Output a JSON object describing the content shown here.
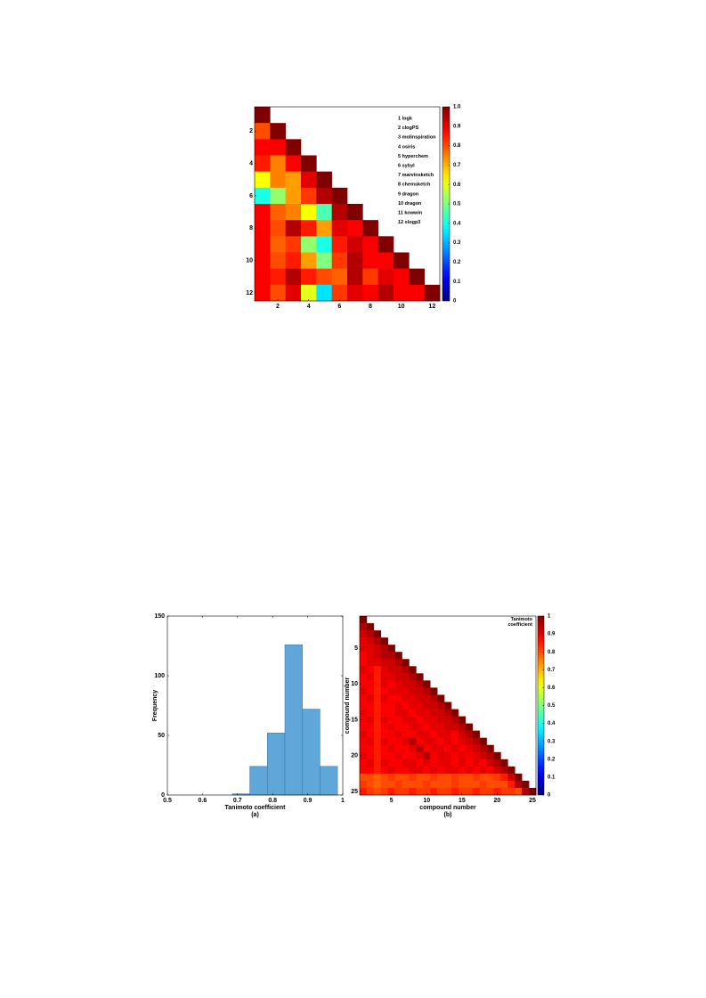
{
  "chart_data": [
    {
      "type": "heatmap",
      "legend_entries": [
        "1 logk",
        "2 clogPS",
        "3 molinspiration",
        "4 osiris",
        "5 hyperchem",
        "6 sybyl",
        "7 marvinsketch",
        "8 chemsketch",
        "9 dragon",
        "10 dragon",
        "11 kowwin",
        "12 slogp3"
      ],
      "xlim": [
        0.5,
        12.5
      ],
      "ylim": [
        0.5,
        12.5
      ],
      "xticks": [
        2,
        4,
        6,
        8,
        10,
        12
      ],
      "yticks": [
        2,
        4,
        6,
        8,
        10,
        12
      ],
      "clim": [
        0,
        1
      ],
      "cticks": [
        0,
        0.1,
        0.2,
        0.3,
        0.4,
        0.5,
        0.6,
        0.7,
        0.8,
        0.9,
        {
          "value": 1,
          "label": "1.0"
        }
      ],
      "colormap": "jet",
      "matrix": [
        [
          1.0
        ],
        [
          0.8,
          1.0
        ],
        [
          0.88,
          0.88,
          1.0
        ],
        [
          0.85,
          0.75,
          0.88,
          1.0
        ],
        [
          0.62,
          0.75,
          0.72,
          0.9,
          1.0
        ],
        [
          0.4,
          0.52,
          0.72,
          0.82,
          0.95,
          1.0
        ],
        [
          0.88,
          0.78,
          0.75,
          0.62,
          0.45,
          0.95,
          1.0
        ],
        [
          0.88,
          0.8,
          0.95,
          0.85,
          0.72,
          0.9,
          0.88,
          1.0
        ],
        [
          0.88,
          0.78,
          0.82,
          0.52,
          0.4,
          0.85,
          0.92,
          0.88,
          1.0
        ],
        [
          0.88,
          0.8,
          0.85,
          0.72,
          0.5,
          0.82,
          0.95,
          0.88,
          0.88,
          1.0
        ],
        [
          0.88,
          0.85,
          0.95,
          0.85,
          0.8,
          0.78,
          0.95,
          0.82,
          0.9,
          0.88,
          1.0
        ],
        [
          0.88,
          0.8,
          0.9,
          0.6,
          0.35,
          0.82,
          0.9,
          0.88,
          0.95,
          0.88,
          0.88,
          1.0
        ]
      ]
    },
    {
      "type": "histogram",
      "x_label": "Tanimoto coefficient",
      "y_label": "Frequency",
      "caption": "(a)",
      "bins": [
        0.685,
        0.735,
        0.785,
        0.835,
        0.885,
        0.935,
        0.985
      ],
      "values": [
        1,
        24,
        52,
        126,
        72,
        24
      ],
      "color": "#5ea7d8",
      "xlim": [
        0.5,
        1
      ],
      "ylim": [
        0,
        150
      ],
      "xticks": [
        0.5,
        0.6,
        0.7,
        0.8,
        0.9,
        1
      ],
      "yticks": [
        0,
        50,
        100,
        150
      ]
    },
    {
      "type": "heatmap",
      "x_label": "compound number",
      "y_label": "compound number",
      "caption": "(b)",
      "colorbar_label": "Tanimoto coefficient",
      "xlim": [
        0.5,
        25.5
      ],
      "ylim": [
        0.5,
        25.5
      ],
      "xticks": [
        5,
        10,
        15,
        20,
        25
      ],
      "yticks": [
        5,
        10,
        15,
        20,
        25
      ],
      "clim": [
        0,
        1
      ],
      "cticks": [
        0,
        0.1,
        0.2,
        0.3,
        0.4,
        0.5,
        0.6,
        0.7,
        0.8,
        0.9,
        1
      ],
      "colormap": "jet",
      "matrix": [
        [
          1
        ],
        [
          0.95,
          1
        ],
        [
          0.92,
          0.95,
          1
        ],
        [
          0.9,
          0.92,
          0.95,
          1
        ],
        [
          0.9,
          0.9,
          0.92,
          0.95,
          1
        ],
        [
          0.88,
          0.9,
          0.92,
          0.95,
          0.95,
          1
        ],
        [
          0.88,
          0.9,
          0.9,
          0.92,
          0.92,
          0.95,
          1
        ],
        [
          0.9,
          0.88,
          0.85,
          0.9,
          0.92,
          0.92,
          0.95,
          1
        ],
        [
          0.88,
          0.9,
          0.85,
          0.9,
          0.9,
          0.92,
          0.92,
          0.95,
          1
        ],
        [
          0.88,
          0.88,
          0.85,
          0.9,
          0.88,
          0.9,
          0.92,
          0.92,
          0.95,
          1
        ],
        [
          0.9,
          0.88,
          0.85,
          0.88,
          0.9,
          0.9,
          0.9,
          0.92,
          0.92,
          0.95,
          1
        ],
        [
          0.88,
          0.9,
          0.85,
          0.9,
          0.88,
          0.88,
          0.9,
          0.9,
          0.92,
          0.92,
          0.95,
          1
        ],
        [
          0.88,
          0.88,
          0.85,
          0.88,
          0.88,
          0.9,
          0.88,
          0.9,
          0.9,
          0.92,
          0.92,
          0.95,
          1
        ],
        [
          0.9,
          0.88,
          0.85,
          0.88,
          0.88,
          0.9,
          0.9,
          0.88,
          0.9,
          0.9,
          0.92,
          0.92,
          0.95,
          1
        ],
        [
          0.88,
          0.9,
          0.85,
          0.9,
          0.88,
          0.88,
          0.9,
          0.9,
          0.88,
          0.9,
          0.9,
          0.92,
          0.92,
          0.95,
          1
        ],
        [
          0.88,
          0.88,
          0.85,
          0.88,
          0.9,
          0.88,
          0.88,
          0.9,
          0.9,
          0.88,
          0.9,
          0.9,
          0.92,
          0.92,
          0.95,
          1
        ],
        [
          0.9,
          0.88,
          0.85,
          0.88,
          0.88,
          0.9,
          0.88,
          0.88,
          0.9,
          0.9,
          0.88,
          0.9,
          0.9,
          0.88,
          0.92,
          0.95,
          1
        ],
        [
          0.88,
          0.9,
          0.85,
          0.9,
          0.88,
          0.88,
          0.9,
          0.95,
          0.88,
          0.9,
          0.9,
          0.88,
          0.9,
          0.88,
          0.9,
          0.92,
          0.95,
          1
        ],
        [
          0.88,
          0.88,
          0.85,
          0.88,
          0.9,
          0.88,
          0.88,
          0.9,
          0.95,
          0.88,
          0.9,
          0.9,
          0.88,
          0.9,
          0.88,
          0.9,
          0.92,
          0.95,
          1
        ],
        [
          0.9,
          0.88,
          0.85,
          0.88,
          0.88,
          0.9,
          0.88,
          0.88,
          0.9,
          0.95,
          0.88,
          0.9,
          0.9,
          0.88,
          0.9,
          0.88,
          0.9,
          0.92,
          0.95,
          1
        ],
        [
          0.88,
          0.9,
          0.85,
          0.9,
          0.88,
          0.88,
          0.9,
          0.9,
          0.88,
          0.9,
          0.88,
          0.9,
          0.9,
          0.88,
          0.9,
          0.88,
          0.9,
          0.88,
          0.92,
          0.95,
          1
        ],
        [
          0.88,
          0.88,
          0.85,
          0.88,
          0.9,
          0.88,
          0.88,
          0.9,
          0.9,
          0.88,
          0.9,
          0.88,
          0.9,
          0.9,
          0.88,
          0.9,
          0.88,
          0.9,
          0.88,
          0.92,
          0.95,
          1
        ],
        [
          0.8,
          0.8,
          0.78,
          0.8,
          0.82,
          0.8,
          0.8,
          0.82,
          0.8,
          0.8,
          0.82,
          0.8,
          0.8,
          0.82,
          0.8,
          0.8,
          0.82,
          0.8,
          0.8,
          0.82,
          0.85,
          0.92,
          1
        ],
        [
          0.82,
          0.8,
          0.78,
          0.8,
          0.8,
          0.82,
          0.8,
          0.8,
          0.8,
          0.82,
          0.8,
          0.8,
          0.8,
          0.82,
          0.8,
          0.8,
          0.8,
          0.82,
          0.8,
          0.8,
          0.8,
          0.85,
          0.95,
          1
        ],
        [
          0.85,
          0.82,
          0.8,
          0.82,
          0.85,
          0.82,
          0.82,
          0.85,
          0.82,
          0.82,
          0.85,
          0.82,
          0.82,
          0.85,
          0.82,
          0.82,
          0.85,
          0.82,
          0.82,
          0.85,
          0.82,
          0.82,
          0.8,
          0.95,
          1
        ]
      ]
    }
  ]
}
